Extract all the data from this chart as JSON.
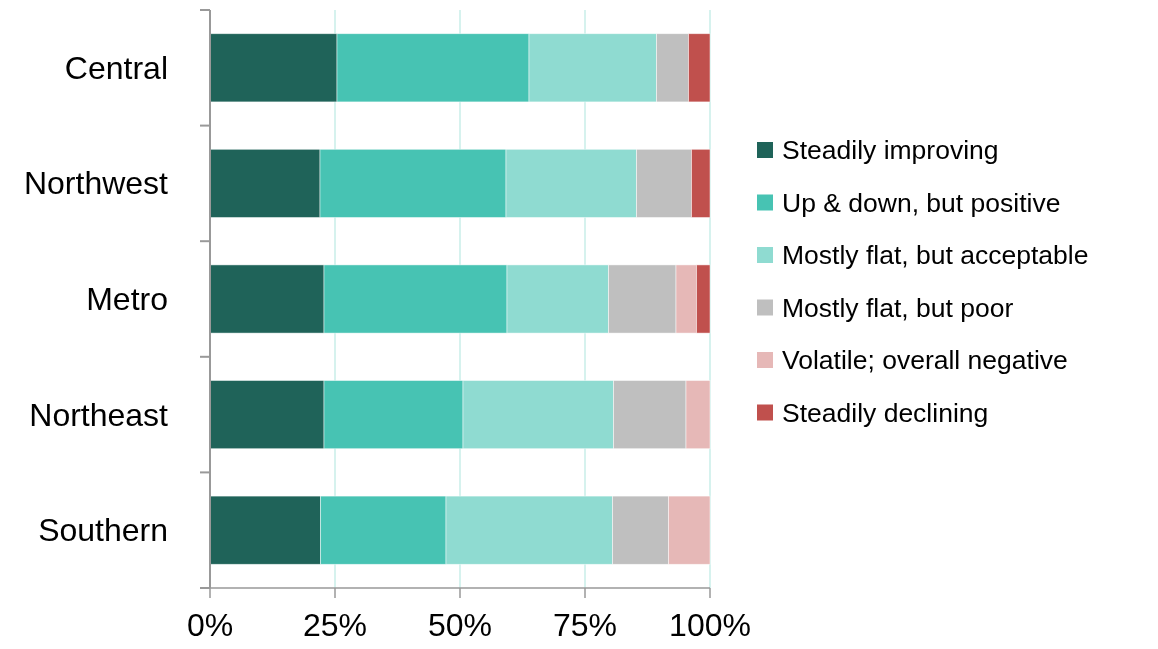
{
  "chart_data": {
    "type": "bar",
    "orientation": "horizontal",
    "stacked": true,
    "categories": [
      "Central",
      "Northwest",
      "Metro",
      "Northeast",
      "Southern"
    ],
    "series": [
      {
        "name": "Steadily improving",
        "color": "#1f6359",
        "values": [
          25.4,
          22.0,
          22.8,
          22.8,
          22.1
        ]
      },
      {
        "name": "Up & down, but positive",
        "color": "#47c3b3",
        "values": [
          38.4,
          37.2,
          36.6,
          27.8,
          25.1
        ]
      },
      {
        "name": "Mostly flat, but acceptable",
        "color": "#8fdbd1",
        "values": [
          25.5,
          26.1,
          20.3,
          30.1,
          33.3
        ]
      },
      {
        "name": "Mostly flat, but poor",
        "color": "#bfbfbf",
        "values": [
          6.4,
          11.0,
          13.5,
          14.5,
          11.2
        ]
      },
      {
        "name": "Volatile; overall negative",
        "color": "#e6b8b7",
        "values": [
          0,
          0,
          4.1,
          4.8,
          8.3
        ]
      },
      {
        "name": "Steadily declining",
        "color": "#c0504d",
        "values": [
          4.3,
          3.7,
          2.7,
          0,
          0
        ]
      }
    ],
    "xlim": [
      0,
      100
    ],
    "xticks": [
      {
        "value": 0,
        "label": "0%"
      },
      {
        "value": 25,
        "label": "25%"
      },
      {
        "value": 50,
        "label": "50%"
      },
      {
        "value": 75,
        "label": "75%"
      },
      {
        "value": 100,
        "label": "100%"
      }
    ],
    "grid": "x",
    "legend": "right"
  }
}
